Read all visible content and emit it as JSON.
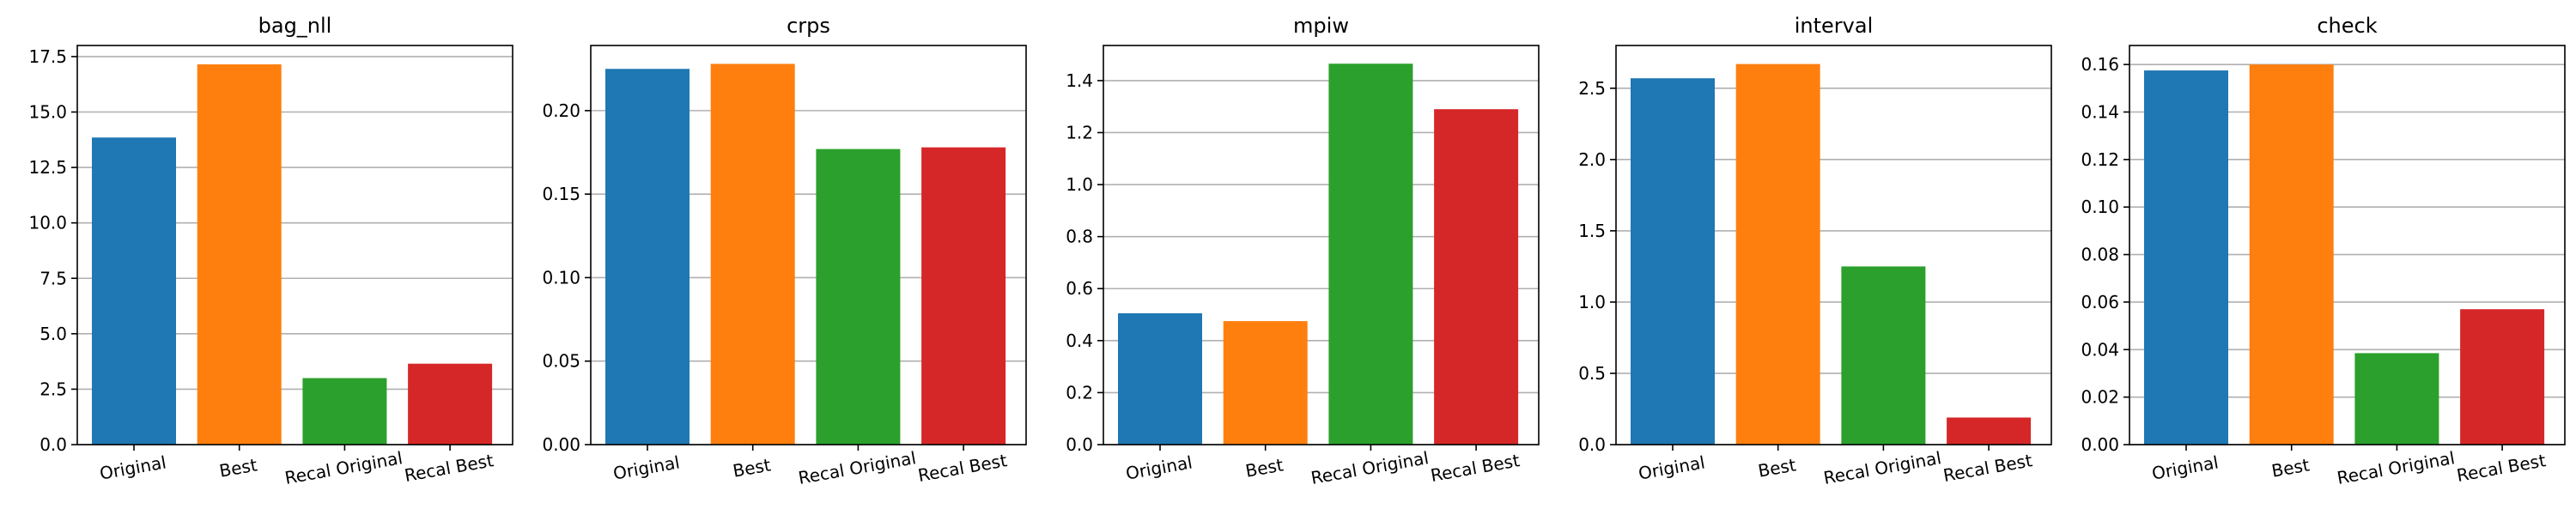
{
  "chart_data": {
    "type": "bar",
    "categories": [
      "Original",
      "Best",
      "Recal Original",
      "Recal Best"
    ],
    "colors": [
      "#1f77b4",
      "#ff7f0e",
      "#2ca02c",
      "#d62728"
    ],
    "grid": "y",
    "panels": [
      {
        "title": "bag_nll",
        "values": [
          13.85,
          17.15,
          3.0,
          3.65
        ],
        "ylim": [
          0,
          18.0
        ],
        "yticks": [
          0.0,
          2.5,
          5.0,
          7.5,
          10.0,
          12.5,
          15.0,
          17.5
        ],
        "ytick_labels": [
          "0.0",
          "2.5",
          "5.0",
          "7.5",
          "10.0",
          "12.5",
          "15.0",
          "17.5"
        ]
      },
      {
        "title": "crps",
        "values": [
          0.225,
          0.228,
          0.177,
          0.178
        ],
        "ylim": [
          0,
          0.239
        ],
        "yticks": [
          0.0,
          0.05,
          0.1,
          0.15,
          0.2
        ],
        "ytick_labels": [
          "0.00",
          "0.05",
          "0.10",
          "0.15",
          "0.20"
        ]
      },
      {
        "title": "mpiw",
        "values": [
          0.505,
          0.475,
          1.465,
          1.29
        ],
        "ylim": [
          0,
          1.535
        ],
        "yticks": [
          0.0,
          0.2,
          0.4,
          0.6,
          0.8,
          1.0,
          1.2,
          1.4
        ],
        "ytick_labels": [
          "0.0",
          "0.2",
          "0.4",
          "0.6",
          "0.8",
          "1.0",
          "1.2",
          "1.4"
        ]
      },
      {
        "title": "interval",
        "values": [
          2.57,
          2.67,
          1.25,
          0.19
        ],
        "ylim": [
          0,
          2.8
        ],
        "yticks": [
          0.0,
          0.5,
          1.0,
          1.5,
          2.0,
          2.5
        ],
        "ytick_labels": [
          "0.0",
          "0.5",
          "1.0",
          "1.5",
          "2.0",
          "2.5"
        ]
      },
      {
        "title": "check",
        "values": [
          0.1575,
          0.16,
          0.0385,
          0.057
        ],
        "ylim": [
          0,
          0.168
        ],
        "yticks": [
          0.0,
          0.02,
          0.04,
          0.06,
          0.08,
          0.1,
          0.12,
          0.14,
          0.16
        ],
        "ytick_labels": [
          "0.00",
          "0.02",
          "0.04",
          "0.06",
          "0.08",
          "0.10",
          "0.12",
          "0.14",
          "0.16"
        ]
      }
    ]
  }
}
